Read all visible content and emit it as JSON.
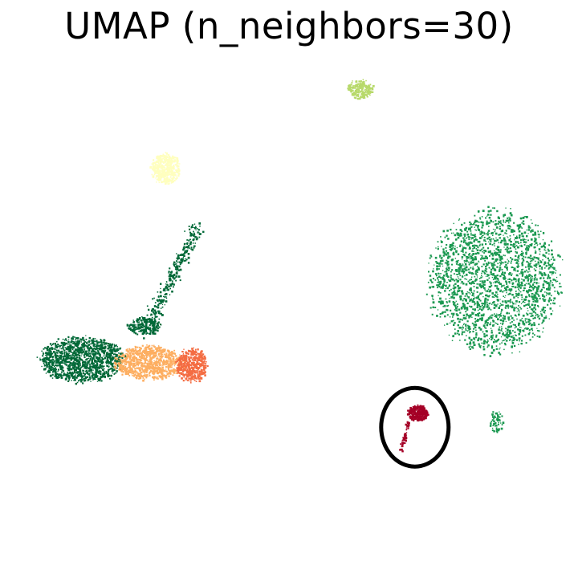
{
  "chart_data": {
    "type": "scatter",
    "title": "UMAP (n_neighbors=30)",
    "xlabel": "",
    "ylabel": "",
    "axes_visible": false,
    "grid": false,
    "legend": "none",
    "xlim": [
      0,
      100
    ],
    "ylim": [
      0,
      100
    ],
    "series": [
      {
        "color": "#1a9850",
        "color_hex_alt": "#4caf5b",
        "clusters": [
          {
            "center": [
              86.5,
              51.5
            ],
            "extent": [
              11.5,
              12.5
            ],
            "shape": "blob",
            "points": 2200
          },
          {
            "center": [
              86.8,
              26.5
            ],
            "extent": [
              1.2,
              2.0
            ],
            "shape": "blob",
            "points": 60
          }
        ]
      },
      {
        "color": "#006837",
        "clusters": [
          {
            "center": [
              13.0,
              37.5
            ],
            "extent": [
              7.5,
              4.0
            ],
            "shape": "blob",
            "points": 1300
          },
          {
            "center": [
              29.0,
              52.0
            ],
            "extent": [
              4.5,
              9.0
            ],
            "shape": "arm",
            "points": 320
          },
          {
            "center": [
              24.0,
              43.5
            ],
            "extent": [
              3.0,
              1.6
            ],
            "shape": "blob",
            "points": 180
          }
        ]
      },
      {
        "color": "#fdae61",
        "clusters": [
          {
            "center": [
              25.0,
              37.0
            ],
            "extent": [
              6.0,
              3.0
            ],
            "shape": "blob",
            "points": 900
          }
        ]
      },
      {
        "color": "#f46d43",
        "clusters": [
          {
            "center": [
              32.5,
              36.5
            ],
            "extent": [
              2.8,
              3.0
            ],
            "shape": "blob",
            "points": 450
          }
        ]
      },
      {
        "color": "#ffffbf",
        "clusters": [
          {
            "center": [
              28.0,
              71.5
            ],
            "extent": [
              2.6,
              2.8
            ],
            "shape": "blob",
            "points": 420
          }
        ]
      },
      {
        "color": "#b7d96a",
        "clusters": [
          {
            "center": [
              62.5,
              85.7
            ],
            "extent": [
              2.4,
              1.6
            ],
            "shape": "blob",
            "points": 230
          }
        ]
      },
      {
        "color": "#a50026",
        "clusters": [
          {
            "center": [
              72.8,
              28.0
            ],
            "extent": [
              1.8,
              1.4
            ],
            "shape": "blob",
            "points": 260
          },
          {
            "center": [
              70.5,
              24.0
            ],
            "extent": [
              0.6,
              2.5
            ],
            "shape": "tail",
            "points": 50
          }
        ]
      }
    ],
    "annotations": [
      {
        "type": "ellipse",
        "center": [
          72.4,
          25.4
        ],
        "radii": [
          6.0,
          7.0
        ],
        "color": "#000000"
      }
    ]
  }
}
